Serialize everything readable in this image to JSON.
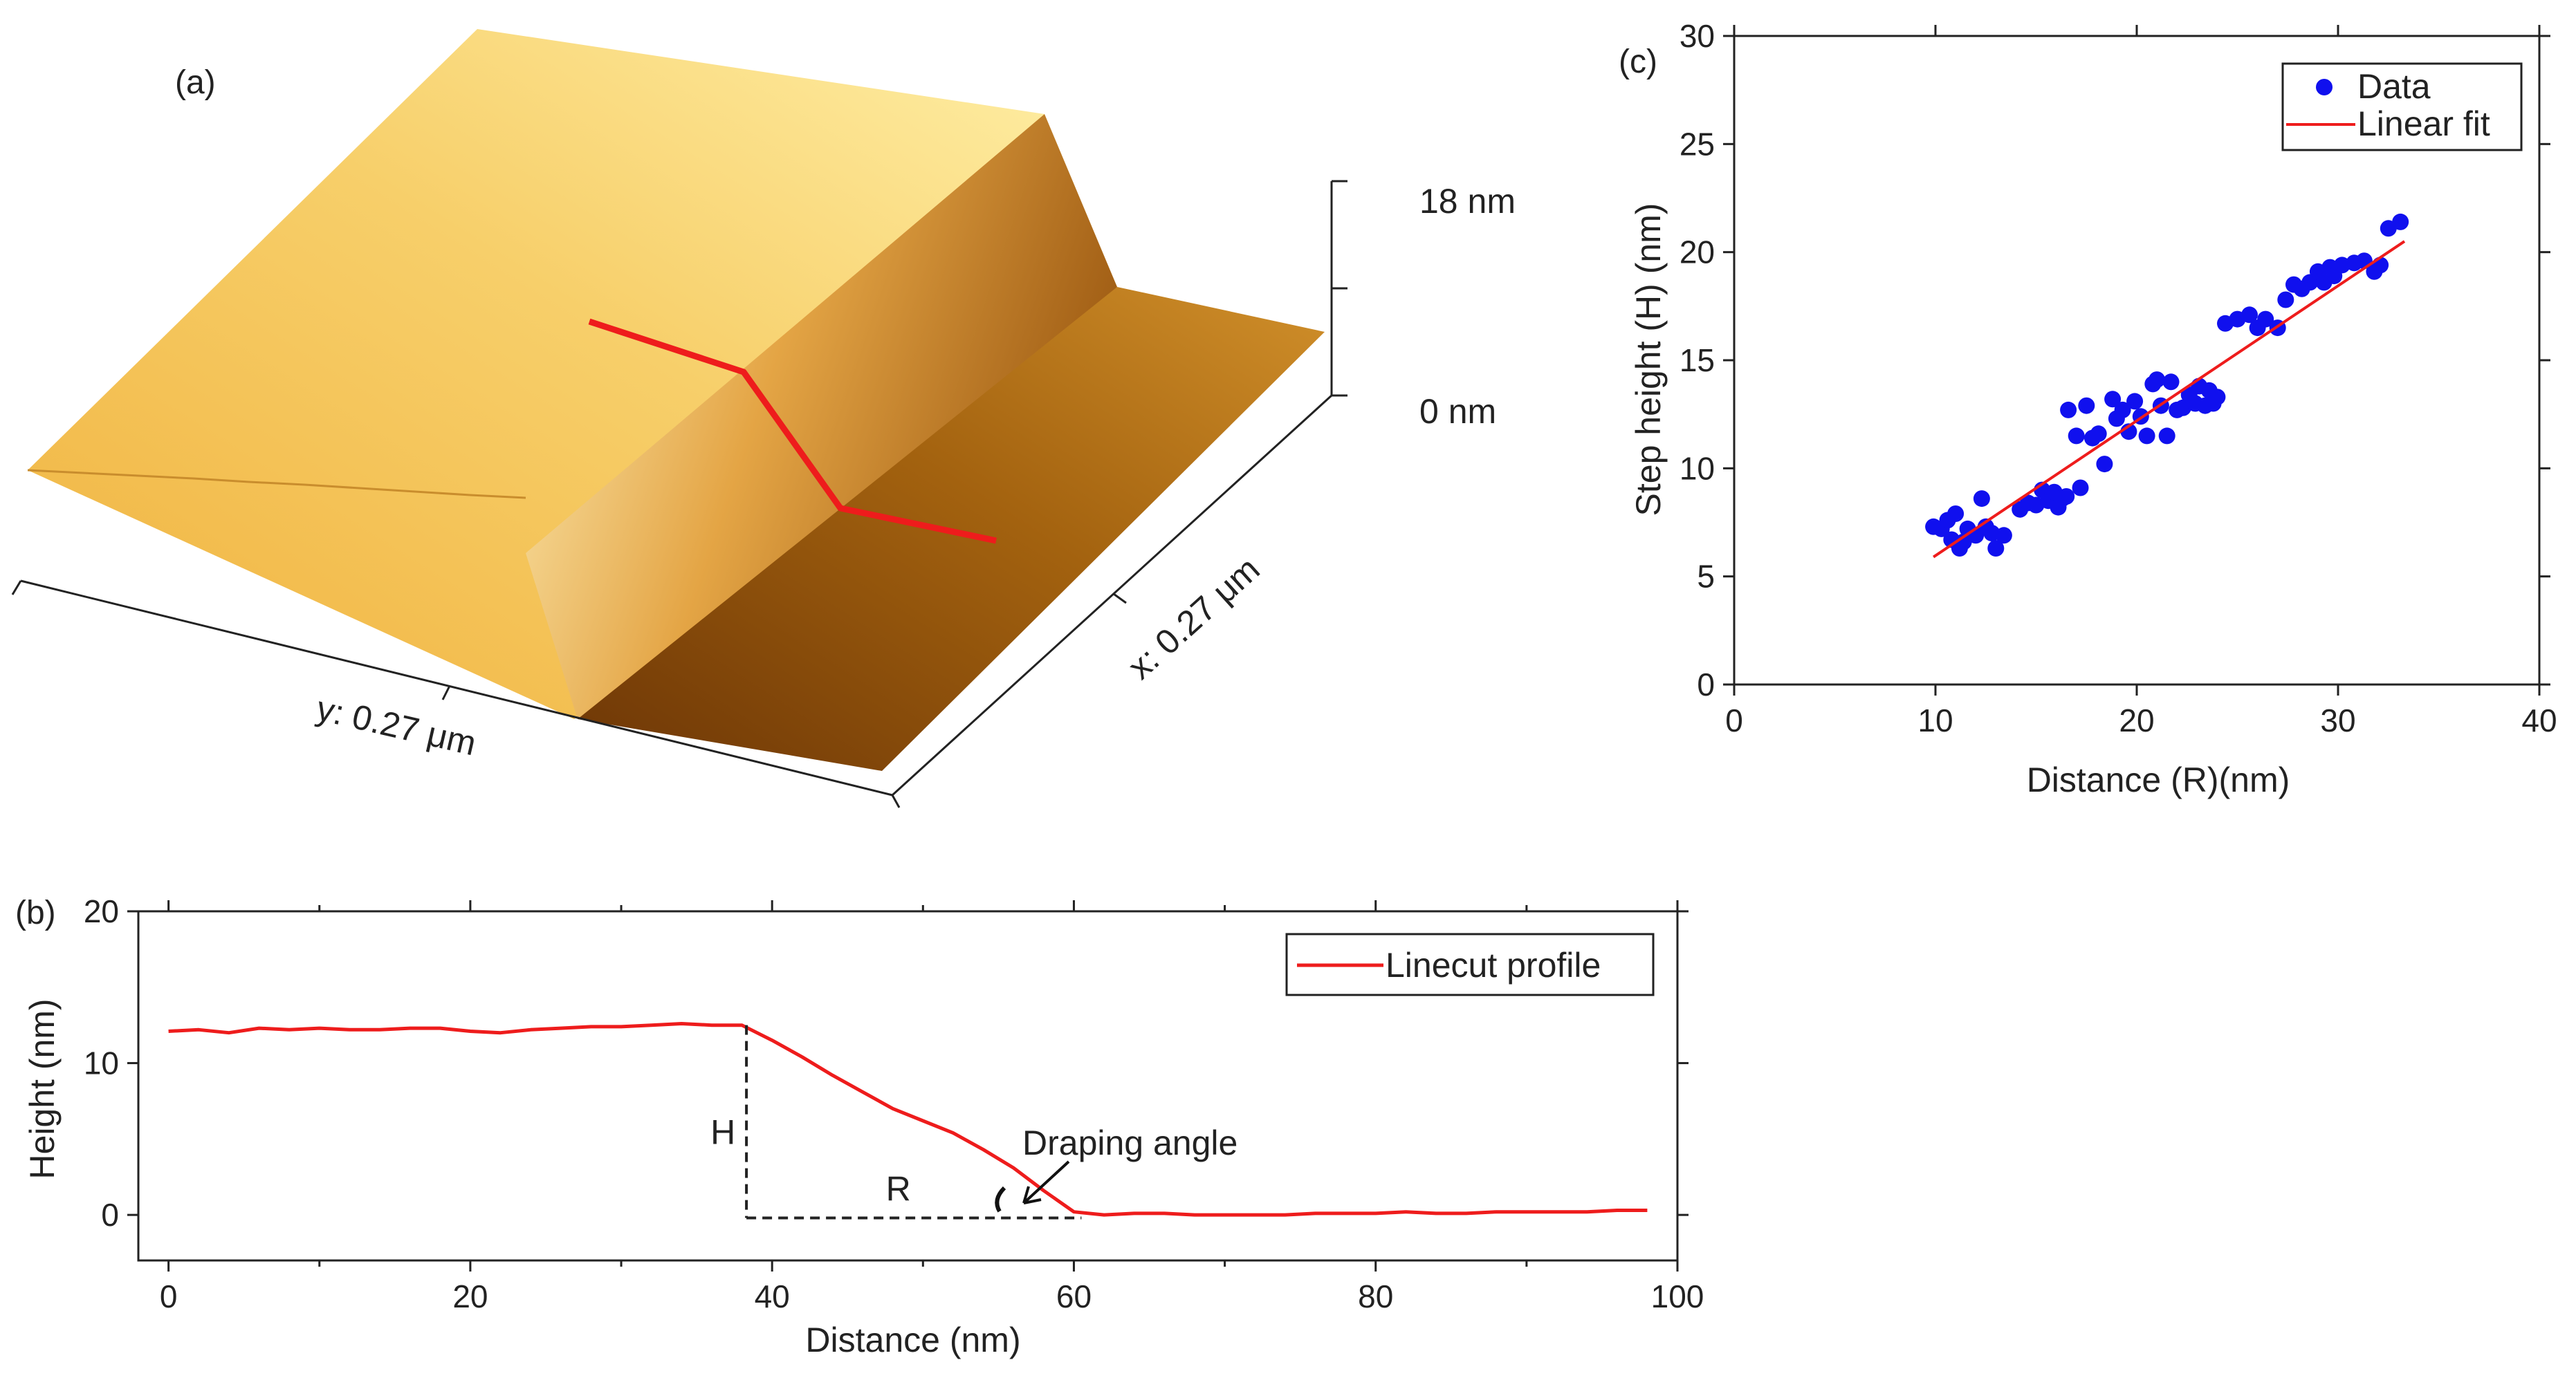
{
  "chart_data": [
    {
      "id": "a",
      "type": "surface",
      "panel_label": "(a)",
      "z_labels": [
        "18 nm",
        "0 nm"
      ],
      "x_axis_label": "x: 0.27 μm",
      "y_axis_label": "y: 0.27 μm",
      "colors": {
        "high": "#fff3b0",
        "mid": "#f2b845",
        "low": "#7a3f08",
        "cut": "#ee1c1c"
      }
    },
    {
      "id": "b",
      "type": "line",
      "panel_label": "(b)",
      "xlabel": "Distance (nm)",
      "ylabel": "Height (nm)",
      "xlim": [
        -2,
        100
      ],
      "ylim": [
        -3,
        20
      ],
      "xticks": [
        0,
        20,
        40,
        60,
        80,
        100
      ],
      "yticks": [
        0,
        10,
        20
      ],
      "series": [
        {
          "name": "Linecut profile",
          "color": "#ee1c1c",
          "x": [
            0,
            2,
            4,
            6,
            8,
            10,
            12,
            14,
            16,
            18,
            20,
            22,
            24,
            26,
            28,
            30,
            32,
            34,
            36,
            38,
            40,
            42,
            44,
            46,
            48,
            50,
            52,
            54,
            56,
            58,
            60,
            62,
            64,
            66,
            68,
            70,
            72,
            74,
            76,
            78,
            80,
            82,
            84,
            86,
            88,
            90,
            92,
            94,
            96,
            98
          ],
          "y": [
            12.1,
            12.2,
            12.0,
            12.3,
            12.2,
            12.3,
            12.2,
            12.2,
            12.3,
            12.3,
            12.1,
            12.0,
            12.2,
            12.3,
            12.4,
            12.4,
            12.5,
            12.6,
            12.5,
            12.5,
            11.5,
            10.4,
            9.2,
            8.1,
            7.0,
            6.2,
            5.4,
            4.3,
            3.1,
            1.6,
            0.2,
            0.0,
            0.1,
            0.1,
            0.0,
            0.0,
            0.0,
            0.0,
            0.1,
            0.1,
            0.1,
            0.2,
            0.1,
            0.1,
            0.2,
            0.2,
            0.2,
            0.2,
            0.3,
            0.3
          ]
        }
      ],
      "annotations": {
        "h_label": "H",
        "r_label": "R",
        "angle_label": "Draping angle"
      },
      "legend_position": "top-right"
    },
    {
      "id": "c",
      "type": "scatter",
      "panel_label": "(c)",
      "xlabel": "Distance (R)(nm)",
      "ylabel": "Step height (H) (nm)",
      "xlim": [
        0,
        40
      ],
      "ylim": [
        0,
        30
      ],
      "xticks": [
        0,
        10,
        20,
        30,
        40
      ],
      "yticks": [
        0,
        5,
        10,
        15,
        20,
        25,
        30
      ],
      "series": [
        {
          "name": "Data",
          "color": "#1010ee",
          "points": [
            [
              9.9,
              7.3
            ],
            [
              10.3,
              7.2
            ],
            [
              10.6,
              7.6
            ],
            [
              10.8,
              6.7
            ],
            [
              11.0,
              7.9
            ],
            [
              11.2,
              6.3
            ],
            [
              11.4,
              6.6
            ],
            [
              11.6,
              7.2
            ],
            [
              12.0,
              6.9
            ],
            [
              12.3,
              8.6
            ],
            [
              12.5,
              7.3
            ],
            [
              12.8,
              7.0
            ],
            [
              13.0,
              6.3
            ],
            [
              13.4,
              6.9
            ],
            [
              14.2,
              8.1
            ],
            [
              14.6,
              8.4
            ],
            [
              15.0,
              8.3
            ],
            [
              15.3,
              9.0
            ],
            [
              15.6,
              8.5
            ],
            [
              15.9,
              8.9
            ],
            [
              16.1,
              8.2
            ],
            [
              16.3,
              8.6
            ],
            [
              16.5,
              8.7
            ],
            [
              16.6,
              12.7
            ],
            [
              17.0,
              11.5
            ],
            [
              17.2,
              9.1
            ],
            [
              17.5,
              12.9
            ],
            [
              17.8,
              11.4
            ],
            [
              18.1,
              11.6
            ],
            [
              18.4,
              10.2
            ],
            [
              18.8,
              13.2
            ],
            [
              19.0,
              12.3
            ],
            [
              19.3,
              12.7
            ],
            [
              19.6,
              11.7
            ],
            [
              19.9,
              13.1
            ],
            [
              20.2,
              12.4
            ],
            [
              20.5,
              11.5
            ],
            [
              20.8,
              13.9
            ],
            [
              21.0,
              14.1
            ],
            [
              21.2,
              12.9
            ],
            [
              21.5,
              11.5
            ],
            [
              21.7,
              14.0
            ],
            [
              22.0,
              12.7
            ],
            [
              22.3,
              12.8
            ],
            [
              22.6,
              13.4
            ],
            [
              22.9,
              13.0
            ],
            [
              23.1,
              13.8
            ],
            [
              23.4,
              12.9
            ],
            [
              23.6,
              13.6
            ],
            [
              23.8,
              13.0
            ],
            [
              24.0,
              13.3
            ],
            [
              24.4,
              16.7
            ],
            [
              25.0,
              16.9
            ],
            [
              25.6,
              17.1
            ],
            [
              26.0,
              16.5
            ],
            [
              26.4,
              16.9
            ],
            [
              27.0,
              16.5
            ],
            [
              27.4,
              17.8
            ],
            [
              27.8,
              18.5
            ],
            [
              28.2,
              18.3
            ],
            [
              28.6,
              18.6
            ],
            [
              29.0,
              19.1
            ],
            [
              29.3,
              18.6
            ],
            [
              29.6,
              19.3
            ],
            [
              29.8,
              18.9
            ],
            [
              30.2,
              19.4
            ],
            [
              30.8,
              19.5
            ],
            [
              31.3,
              19.6
            ],
            [
              31.8,
              19.1
            ],
            [
              32.1,
              19.4
            ],
            [
              32.5,
              21.1
            ],
            [
              33.1,
              21.4
            ]
          ]
        },
        {
          "name": "Linear fit",
          "color": "#ee1c1c",
          "x": [
            9.9,
            33.3
          ],
          "y": [
            5.9,
            20.5
          ]
        }
      ],
      "legend_position": "top-right"
    }
  ]
}
